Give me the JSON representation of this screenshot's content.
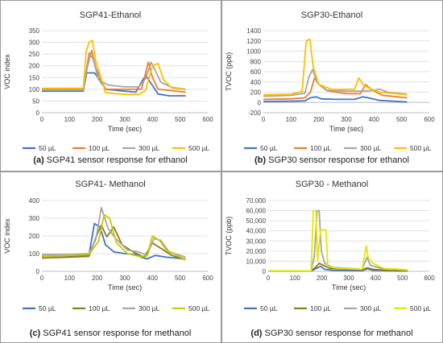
{
  "chart_data": [
    {
      "id": "a",
      "type": "line",
      "title": "SGP41-Ethanol",
      "xlabel": "Time (sec)",
      "ylabel": "VOC index",
      "xlim": [
        0,
        600
      ],
      "ylim": [
        0,
        350
      ],
      "xticks": [
        "0",
        "100",
        "200",
        "300",
        "400",
        "500",
        "600"
      ],
      "yticks": [
        "0",
        "50",
        "100",
        "150",
        "200",
        "250",
        "300",
        "350"
      ],
      "caption_letter": "(a)",
      "caption_text": " SGP41 sensor response for ethanol",
      "series": [
        {
          "name": "50 µL",
          "color": "#4472c4",
          "points": [
            [
              0,
              92
            ],
            [
              100,
              92
            ],
            [
              150,
              92
            ],
            [
              162,
              170
            ],
            [
              190,
              170
            ],
            [
              200,
              155
            ],
            [
              230,
              100
            ],
            [
              300,
              92
            ],
            [
              340,
              88
            ],
            [
              355,
              120
            ],
            [
              375,
              160
            ],
            [
              395,
              125
            ],
            [
              420,
              80
            ],
            [
              460,
              72
            ],
            [
              520,
              72
            ]
          ]
        },
        {
          "name": "100 µL",
          "color": "#ed7d31",
          "points": [
            [
              0,
              100
            ],
            [
              100,
              100
            ],
            [
              150,
              100
            ],
            [
              165,
              200
            ],
            [
              180,
              265
            ],
            [
              195,
              190
            ],
            [
              230,
              100
            ],
            [
              300,
              100
            ],
            [
              360,
              100
            ],
            [
              385,
              215
            ],
            [
              400,
              150
            ],
            [
              420,
              100
            ],
            [
              520,
              88
            ]
          ]
        },
        {
          "name": "300 µL",
          "color": "#a5a5a5",
          "points": [
            [
              0,
              96
            ],
            [
              100,
              96
            ],
            [
              150,
              96
            ],
            [
              170,
              255
            ],
            [
              185,
              230
            ],
            [
              205,
              140
            ],
            [
              240,
              118
            ],
            [
              300,
              110
            ],
            [
              350,
              110
            ],
            [
              375,
              145
            ],
            [
              395,
              215
            ],
            [
              410,
              180
            ],
            [
              430,
              130
            ],
            [
              470,
              108
            ],
            [
              520,
              100
            ]
          ]
        },
        {
          "name": "500 µL",
          "color": "#ffc000",
          "points": [
            [
              0,
              104
            ],
            [
              100,
              104
            ],
            [
              150,
              104
            ],
            [
              160,
              260
            ],
            [
              170,
              300
            ],
            [
              182,
              308
            ],
            [
              195,
              220
            ],
            [
              230,
              85
            ],
            [
              300,
              78
            ],
            [
              350,
              78
            ],
            [
              375,
              95
            ],
            [
              400,
              200
            ],
            [
              420,
              210
            ],
            [
              440,
              140
            ],
            [
              470,
              105
            ],
            [
              520,
              98
            ]
          ]
        }
      ]
    },
    {
      "id": "b",
      "type": "line",
      "title": "SGP30-Ethanol",
      "xlabel": "Time (sec)",
      "ylabel": "TVOC (ppb)",
      "xlim": [
        0,
        600
      ],
      "ylim": [
        -200,
        1400
      ],
      "xticks": [
        "0",
        "100",
        "200",
        "300",
        "400",
        "500",
        "600"
      ],
      "yticks": [
        "-200",
        "0",
        "200",
        "400",
        "600",
        "800",
        "1000",
        "1200",
        "1400"
      ],
      "caption_letter": "(b)",
      "caption_text": " SGP30 sensor response for ethanol",
      "series": [
        {
          "name": "50 µL",
          "color": "#4472c4",
          "points": [
            [
              0,
              20
            ],
            [
              100,
              25
            ],
            [
              150,
              30
            ],
            [
              170,
              90
            ],
            [
              190,
              110
            ],
            [
              210,
              70
            ],
            [
              260,
              60
            ],
            [
              330,
              60
            ],
            [
              360,
              110
            ],
            [
              380,
              90
            ],
            [
              420,
              40
            ],
            [
              520,
              10
            ]
          ]
        },
        {
          "name": "100 µL",
          "color": "#ed7d31",
          "points": [
            [
              0,
              60
            ],
            [
              100,
              70
            ],
            [
              150,
              90
            ],
            [
              170,
              200
            ],
            [
              185,
              480
            ],
            [
              200,
              350
            ],
            [
              230,
              230
            ],
            [
              300,
              170
            ],
            [
              350,
              170
            ],
            [
              370,
              350
            ],
            [
              390,
              250
            ],
            [
              430,
              140
            ],
            [
              520,
              90
            ]
          ]
        },
        {
          "name": "300 µL",
          "color": "#a5a5a5",
          "points": [
            [
              0,
              120
            ],
            [
              100,
              140
            ],
            [
              150,
              180
            ],
            [
              165,
              500
            ],
            [
              178,
              640
            ],
            [
              195,
              380
            ],
            [
              230,
              240
            ],
            [
              300,
              220
            ],
            [
              360,
              220
            ],
            [
              390,
              230
            ],
            [
              420,
              260
            ],
            [
              450,
              200
            ],
            [
              520,
              160
            ]
          ]
        },
        {
          "name": "500 µL",
          "color": "#ffc000",
          "points": [
            [
              0,
              150
            ],
            [
              100,
              160
            ],
            [
              140,
              220
            ],
            [
              155,
              1200
            ],
            [
              168,
              1230
            ],
            [
              180,
              700
            ],
            [
              200,
              350
            ],
            [
              250,
              250
            ],
            [
              330,
              260
            ],
            [
              345,
              480
            ],
            [
              360,
              350
            ],
            [
              380,
              280
            ],
            [
              420,
              200
            ],
            [
              520,
              150
            ]
          ]
        }
      ]
    },
    {
      "id": "c",
      "type": "line",
      "title": "SGP41- Methanol",
      "xlabel": "Time (sec)",
      "ylabel": "VOC index",
      "xlim": [
        0,
        600
      ],
      "ylim": [
        0,
        400
      ],
      "xticks": [
        "0",
        "100",
        "200",
        "300",
        "400",
        "500",
        "600"
      ],
      "yticks": [
        "0",
        "100",
        "200",
        "300",
        "400"
      ],
      "caption_letter": "(c)",
      "caption_text": " SGP41 sensor response for methanol",
      "series": [
        {
          "name": "50 µL",
          "color": "#4472c4",
          "points": [
            [
              0,
              85
            ],
            [
              100,
              88
            ],
            [
              170,
              90
            ],
            [
              190,
              270
            ],
            [
              210,
              250
            ],
            [
              230,
              150
            ],
            [
              260,
              110
            ],
            [
              300,
              100
            ],
            [
              340,
              95
            ],
            [
              360,
              80
            ],
            [
              380,
              70
            ],
            [
              410,
              90
            ],
            [
              450,
              80
            ],
            [
              520,
              70
            ]
          ]
        },
        {
          "name": "100 µL",
          "color": "#8b7d1a",
          "points": [
            [
              0,
              75
            ],
            [
              100,
              80
            ],
            [
              170,
              85
            ],
            [
              200,
              210
            ],
            [
              215,
              260
            ],
            [
              235,
              195
            ],
            [
              260,
              250
            ],
            [
              290,
              150
            ],
            [
              330,
              110
            ],
            [
              370,
              80
            ],
            [
              400,
              160
            ],
            [
              430,
              130
            ],
            [
              470,
              90
            ],
            [
              520,
              65
            ]
          ]
        },
        {
          "name": "300 µL",
          "color": "#a5a5a5",
          "points": [
            [
              0,
              95
            ],
            [
              100,
              95
            ],
            [
              170,
              100
            ],
            [
              195,
              180
            ],
            [
              215,
              360
            ],
            [
              240,
              240
            ],
            [
              270,
              180
            ],
            [
              310,
              120
            ],
            [
              350,
              110
            ],
            [
              380,
              90
            ],
            [
              405,
              185
            ],
            [
              430,
              175
            ],
            [
              460,
              110
            ],
            [
              520,
              80
            ]
          ]
        },
        {
          "name": "500 µL",
          "color": "#c8c800",
          "points": [
            [
              0,
              85
            ],
            [
              100,
              90
            ],
            [
              170,
              95
            ],
            [
              205,
              170
            ],
            [
              225,
              320
            ],
            [
              245,
              300
            ],
            [
              270,
              160
            ],
            [
              310,
              100
            ],
            [
              350,
              85
            ],
            [
              380,
              85
            ],
            [
              400,
              200
            ],
            [
              425,
              175
            ],
            [
              450,
              120
            ],
            [
              520,
              65
            ]
          ]
        }
      ]
    },
    {
      "id": "d",
      "type": "line",
      "title": "SGP30 - Methanol",
      "xlabel": "Time (sec)",
      "ylabel": "TVOC (ppb)",
      "xlim": [
        0,
        600
      ],
      "ylim": [
        0,
        70000
      ],
      "xticks": [
        "0",
        "100",
        "200",
        "300",
        "400",
        "500",
        "600"
      ],
      "yticks": [
        "0",
        "10,000",
        "20,000",
        "30,000",
        "40,000",
        "50,000",
        "60,000",
        "70,000"
      ],
      "caption_letter": "(d)",
      "caption_text": " SGP30 sensor response for methanol",
      "series": [
        {
          "name": "50 µL",
          "color": "#4472c4",
          "points": [
            [
              0,
              200
            ],
            [
              160,
              200
            ],
            [
              180,
              3000
            ],
            [
              195,
              5000
            ],
            [
              210,
              2000
            ],
            [
              240,
              1000
            ],
            [
              350,
              600
            ],
            [
              370,
              2500
            ],
            [
              390,
              1000
            ],
            [
              450,
              500
            ],
            [
              520,
              300
            ]
          ]
        },
        {
          "name": "100 µL",
          "color": "#8b7d1a",
          "points": [
            [
              0,
              200
            ],
            [
              160,
              300
            ],
            [
              180,
              5000
            ],
            [
              190,
              8000
            ],
            [
              205,
              6000
            ],
            [
              230,
              3000
            ],
            [
              350,
              1500
            ],
            [
              370,
              3500
            ],
            [
              390,
              2000
            ],
            [
              450,
              800
            ],
            [
              520,
              400
            ]
          ]
        },
        {
          "name": "300 µL",
          "color": "#a5a5a5",
          "points": [
            [
              0,
              300
            ],
            [
              160,
              400
            ],
            [
              172,
              15000
            ],
            [
              182,
              60000
            ],
            [
              190,
              60000
            ],
            [
              198,
              20000
            ],
            [
              210,
              8000
            ],
            [
              240,
              4000
            ],
            [
              350,
              2000
            ],
            [
              368,
              14000
            ],
            [
              380,
              6000
            ],
            [
              420,
              3000
            ],
            [
              520,
              1000
            ]
          ]
        },
        {
          "name": "500 µL",
          "color": "#e6e600",
          "points": [
            [
              0,
              400
            ],
            [
              160,
              500
            ],
            [
              168,
              60000
            ],
            [
              178,
              60000
            ],
            [
              184,
              10000
            ],
            [
              195,
              41000
            ],
            [
              215,
              41000
            ],
            [
              222,
              5000
            ],
            [
              260,
              3000
            ],
            [
              350,
              2000
            ],
            [
              365,
              25000
            ],
            [
              372,
              14000
            ],
            [
              390,
              8000
            ],
            [
              430,
              3000
            ],
            [
              520,
              1500
            ]
          ]
        }
      ]
    }
  ]
}
